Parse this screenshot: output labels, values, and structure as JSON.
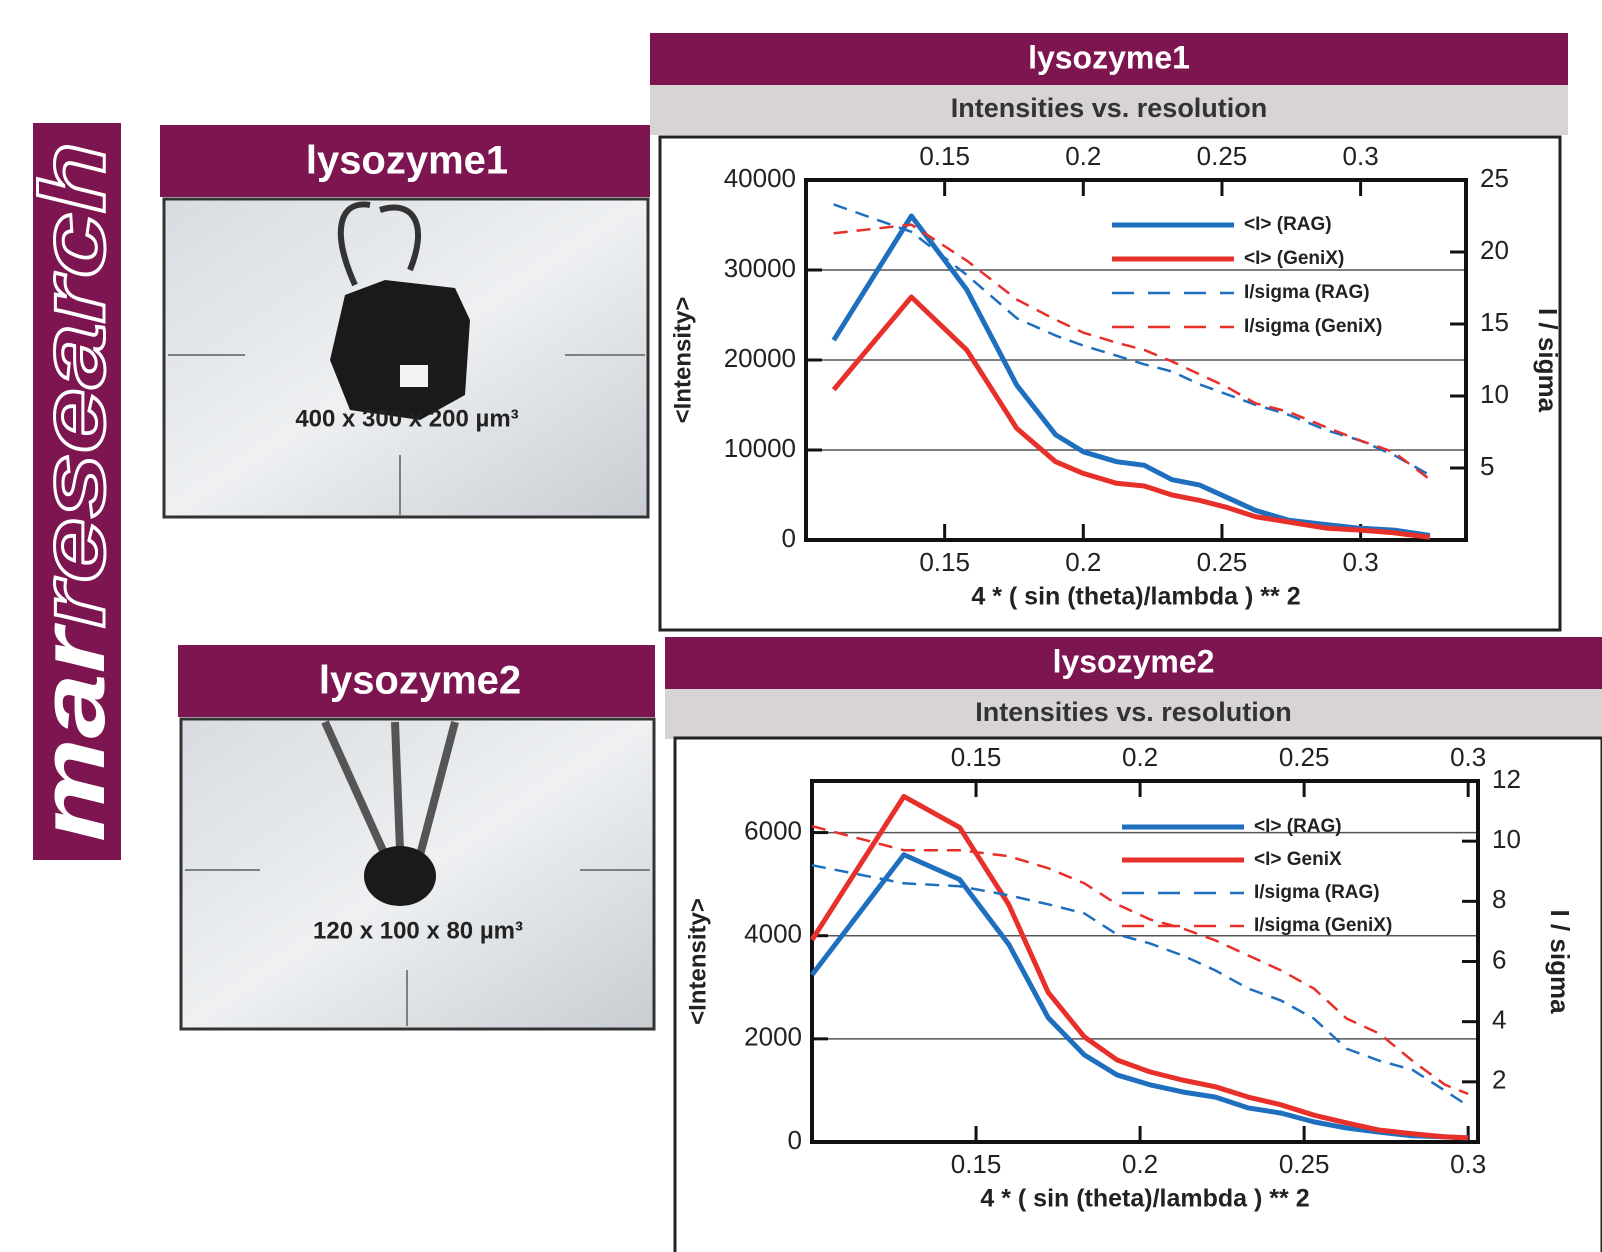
{
  "logo": {
    "prefix": "mar",
    "suffix": "research"
  },
  "panels": [
    {
      "title": "lysozyme1",
      "caption": "400 x 300 x 200 µm³"
    },
    {
      "title": "lysozyme2",
      "caption": "120 x 100 x 80 µm³"
    }
  ],
  "chart_data": [
    {
      "type": "line",
      "header": "lysozyme1",
      "title": "Intensities vs. resolution",
      "x_label": "4 * ( sin (theta)/lambda ) ** 2",
      "y_label": "<Intensity>",
      "y2_label": "I / sigma",
      "x": [
        0.11,
        0.138,
        0.158,
        0.176,
        0.19,
        0.2,
        0.212,
        0.222,
        0.232,
        0.242,
        0.252,
        0.262,
        0.274,
        0.288,
        0.3,
        0.312,
        0.325
      ],
      "xlim": [
        0.1,
        0.338
      ],
      "xticks": [
        0.15,
        0.2,
        0.25,
        0.3
      ],
      "ylim": [
        0,
        40000
      ],
      "yticks": [
        0,
        10000,
        20000,
        30000,
        40000
      ],
      "y2lim": [
        0,
        25
      ],
      "y2ticks": [
        5,
        10,
        15,
        20,
        25
      ],
      "grid": true,
      "legend": "upper right",
      "series": [
        {
          "name": "<I> (RAG)",
          "color": "#1f6fbf",
          "line_style": "solid",
          "values": [
            22200,
            36000,
            27800,
            17200,
            11700,
            9800,
            8700,
            8300,
            6700,
            6100,
            4700,
            3300,
            2200,
            1700,
            1300,
            1100,
            500
          ]
        },
        {
          "name": "<I> (GeniX)",
          "color": "#e8302a",
          "line_style": "solid",
          "values": [
            16700,
            27000,
            21100,
            12400,
            8700,
            7400,
            6300,
            6000,
            5000,
            4400,
            3600,
            2600,
            2000,
            1300,
            1100,
            800,
            300
          ]
        },
        {
          "name": "I/sigma (RAG)",
          "color": "#1f6fbf",
          "line_style": "dashed",
          "axis": "y2",
          "values": [
            23.3,
            21.4,
            18.4,
            15.4,
            14.2,
            13.5,
            12.8,
            12.2,
            11.7,
            10.8,
            10.1,
            9.4,
            8.7,
            7.6,
            6.9,
            5.9,
            4.5
          ]
        },
        {
          "name": "I/sigma (GeniX)",
          "color": "#e8302a",
          "line_style": "dashed",
          "axis": "y2",
          "values": [
            21.3,
            21.9,
            19.4,
            16.7,
            15.3,
            14.4,
            13.7,
            13.2,
            12.4,
            11.5,
            10.6,
            9.5,
            8.9,
            7.8,
            6.9,
            6.1,
            4.2
          ]
        }
      ]
    },
    {
      "type": "line",
      "header": "lysozyme2",
      "title": "Intensities vs. resolution",
      "x_label": "4 * ( sin (theta)/lambda ) ** 2",
      "y_label": "<Intensity>",
      "y2_label": "I / sigma",
      "x": [
        0.1,
        0.128,
        0.145,
        0.16,
        0.172,
        0.183,
        0.193,
        0.203,
        0.213,
        0.223,
        0.233,
        0.243,
        0.253,
        0.263,
        0.273,
        0.283,
        0.293,
        0.3
      ],
      "xlim": [
        0.1,
        0.303
      ],
      "xticks": [
        0.15,
        0.2,
        0.25,
        0.3
      ],
      "ylim": [
        0,
        7000
      ],
      "yticks": [
        0,
        2000,
        4000,
        6000
      ],
      "y2lim": [
        0,
        12
      ],
      "y2ticks": [
        2,
        4,
        6,
        8,
        10,
        12
      ],
      "grid": true,
      "legend": "upper right",
      "series": [
        {
          "name": "<I> (RAG)",
          "color": "#1f6fbf",
          "line_style": "solid",
          "values": [
            3240,
            5570,
            5090,
            3830,
            2410,
            1690,
            1300,
            1110,
            970,
            870,
            660,
            560,
            390,
            270,
            190,
            120,
            100,
            80
          ]
        },
        {
          "name": "<I> GeniX",
          "color": "#e8302a",
          "line_style": "solid",
          "values": [
            3920,
            6700,
            6100,
            4600,
            2900,
            2040,
            1590,
            1360,
            1200,
            1070,
            870,
            720,
            520,
            370,
            230,
            160,
            100,
            80
          ]
        },
        {
          "name": "I/sigma (RAG)",
          "color": "#1f6fbf",
          "line_style": "dashed",
          "axis": "y2",
          "values": [
            9.2,
            8.6,
            8.5,
            8.2,
            7.9,
            7.6,
            6.9,
            6.6,
            6.2,
            5.7,
            5.1,
            4.7,
            4.1,
            3.1,
            2.7,
            2.4,
            1.7,
            1.2
          ]
        },
        {
          "name": "I/sigma (GeniX)",
          "color": "#e8302a",
          "line_style": "dashed",
          "axis": "y2",
          "values": [
            10.5,
            9.7,
            9.7,
            9.5,
            9.1,
            8.6,
            7.9,
            7.4,
            7.1,
            6.7,
            6.2,
            5.7,
            5.1,
            4.1,
            3.6,
            2.7,
            1.9,
            1.6
          ]
        }
      ]
    }
  ]
}
